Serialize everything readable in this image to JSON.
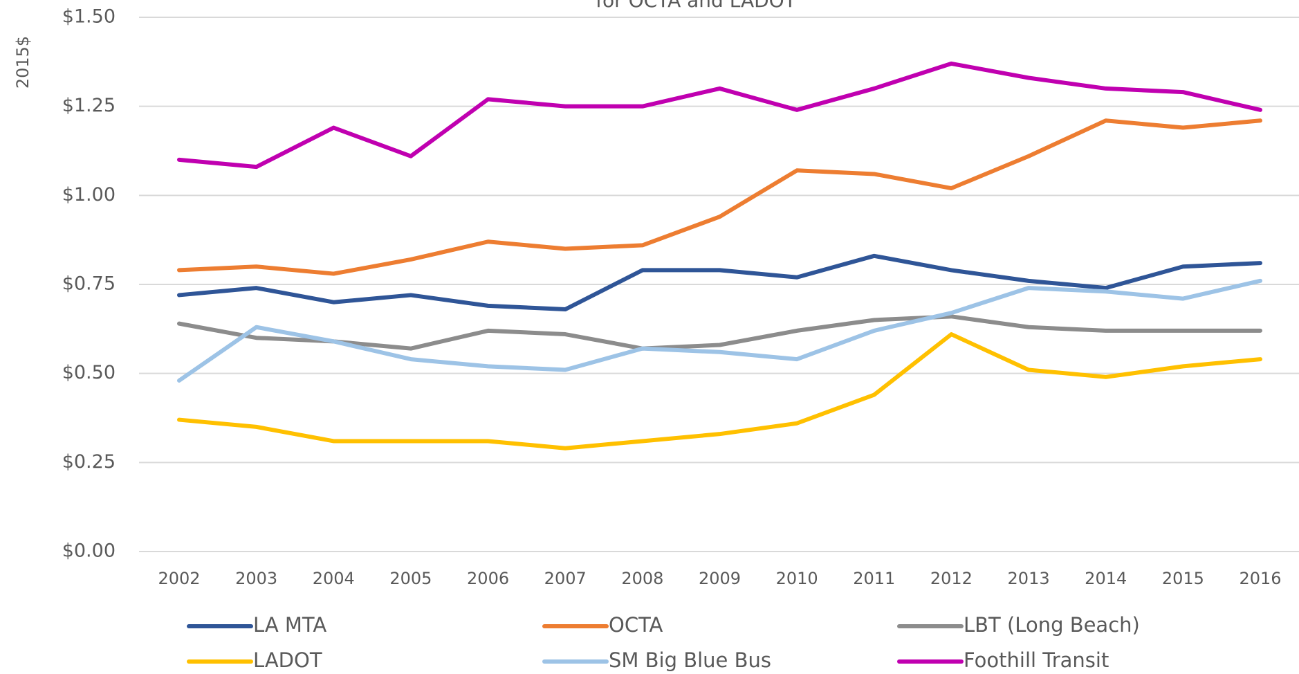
{
  "chart_data": {
    "type": "line",
    "title": "for OCTA and LADOT",
    "y_label": "2015$",
    "categories": [
      "2002",
      "2003",
      "2004",
      "2005",
      "2006",
      "2007",
      "2008",
      "2009",
      "2010",
      "2011",
      "2012",
      "2013",
      "2014",
      "2015",
      "2016"
    ],
    "ylim": [
      0,
      1.5
    ],
    "yticks": [
      {
        "value": 0,
        "label": "$0.00"
      },
      {
        "value": 0.25,
        "label": "$0.25"
      },
      {
        "value": 0.5,
        "label": "$0.50"
      },
      {
        "value": 0.75,
        "label": "$0.75"
      },
      {
        "value": 1,
        "label": "$1.00"
      },
      {
        "value": 1.25,
        "label": "$1.25"
      },
      {
        "value": 1.5,
        "label": "$1.50"
      }
    ],
    "grid": true,
    "legend": "bottom",
    "series": [
      {
        "name": "LA MTA",
        "color": "#2f5597",
        "values": [
          0.72,
          0.74,
          0.7,
          0.72,
          0.69,
          0.68,
          0.79,
          0.79,
          0.77,
          0.83,
          0.79,
          0.76,
          0.74,
          0.8,
          0.81
        ]
      },
      {
        "name": "OCTA",
        "color": "#ed7d31",
        "values": [
          0.79,
          0.8,
          0.78,
          0.82,
          0.87,
          0.85,
          0.86,
          0.94,
          1.07,
          1.06,
          1.02,
          1.11,
          1.21,
          1.19,
          1.21
        ]
      },
      {
        "name": "LBT (Long Beach)",
        "color": "#8c8c8c",
        "values": [
          0.64,
          0.6,
          0.59,
          0.57,
          0.62,
          0.61,
          0.57,
          0.58,
          0.62,
          0.65,
          0.66,
          0.63,
          0.62,
          0.62,
          0.62
        ]
      },
      {
        "name": "LADOT",
        "color": "#ffc000",
        "values": [
          0.37,
          0.35,
          0.31,
          0.31,
          0.31,
          0.29,
          0.31,
          0.33,
          0.36,
          0.44,
          0.61,
          0.51,
          0.49,
          0.52,
          0.54
        ]
      },
      {
        "name": "SM Big Blue Bus",
        "color": "#9dc3e6",
        "values": [
          0.48,
          0.63,
          0.59,
          0.54,
          0.52,
          0.51,
          0.57,
          0.56,
          0.54,
          0.62,
          0.67,
          0.74,
          0.73,
          0.71,
          0.76
        ]
      },
      {
        "name": "Foothill Transit",
        "color": "#c000b0",
        "values": [
          1.1,
          1.08,
          1.19,
          1.11,
          1.27,
          1.25,
          1.25,
          1.3,
          1.24,
          1.3,
          1.37,
          1.33,
          1.3,
          1.29,
          1.24
        ]
      }
    ]
  }
}
